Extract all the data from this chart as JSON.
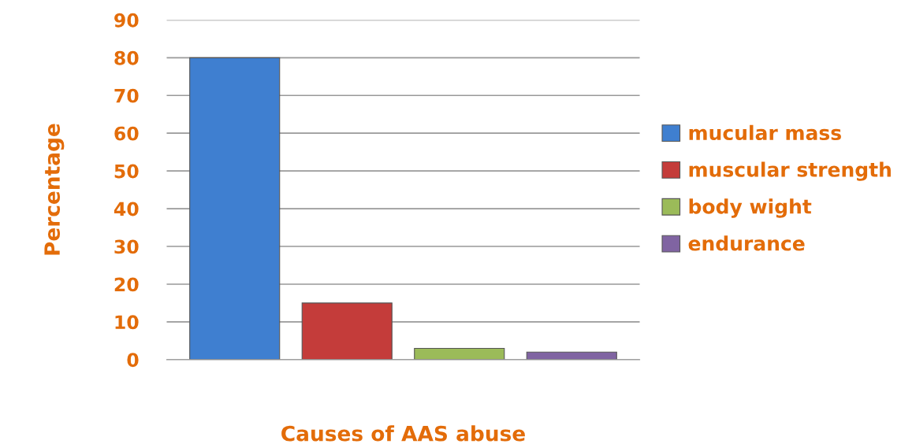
{
  "chart_data": {
    "type": "bar",
    "xlabel": "Causes of AAS abuse",
    "ylabel": "Percentage",
    "categories": [
      null
    ],
    "series": [
      {
        "name": "mucular mass",
        "color": "#3f7fd0",
        "values": [
          80
        ]
      },
      {
        "name": "muscular strength",
        "color": "#c43c3a",
        "values": [
          15
        ]
      },
      {
        "name": "body wight",
        "color": "#9bbb59",
        "values": [
          3
        ]
      },
      {
        "name": "endurance",
        "color": "#8064a2",
        "values": [
          2
        ]
      }
    ],
    "ylim": [
      0,
      90
    ],
    "yticks": [
      0,
      10,
      20,
      30,
      40,
      50,
      60,
      70,
      80,
      90
    ],
    "grid": "y",
    "legend": "right"
  }
}
